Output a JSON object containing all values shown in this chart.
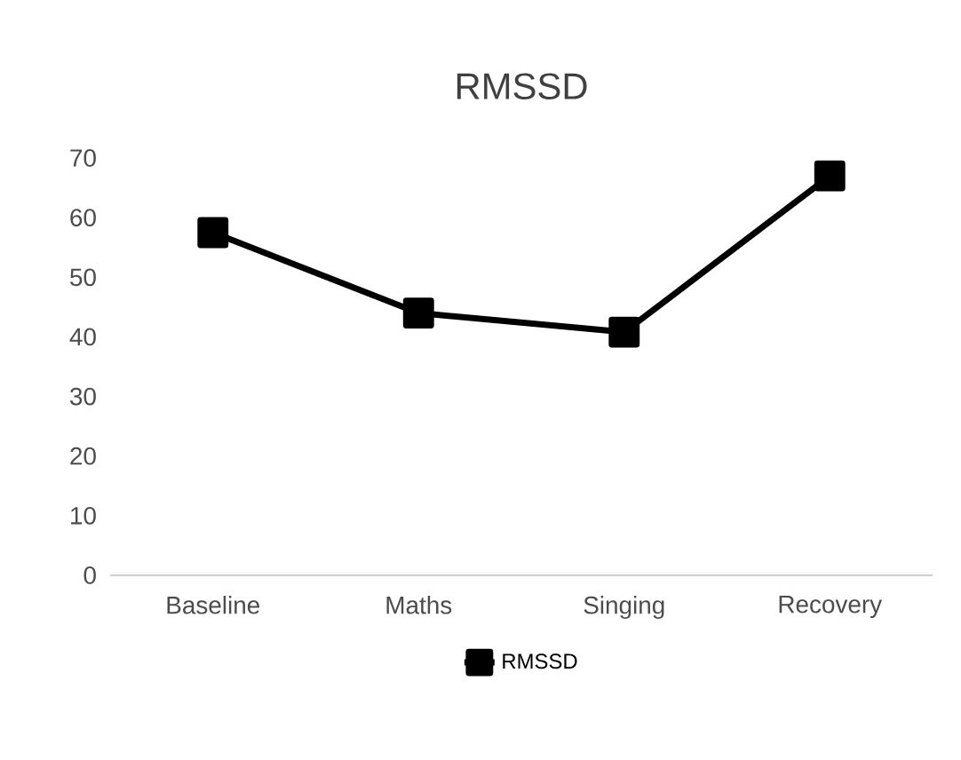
{
  "chart_data": {
    "type": "line",
    "title": "RMSSD",
    "categories": [
      "Baseline",
      "Maths",
      "Singing",
      "Recovery"
    ],
    "series": [
      {
        "name": "RMSSD",
        "color": "#000000",
        "values": [
          57.5,
          44,
          40.8,
          67
        ]
      }
    ],
    "ylim": [
      0,
      70
    ],
    "yticks": [
      0,
      10,
      20,
      30,
      40,
      50,
      60,
      70
    ],
    "grid": false,
    "legend": "bottom",
    "marker": "square",
    "line_style": "solid"
  }
}
